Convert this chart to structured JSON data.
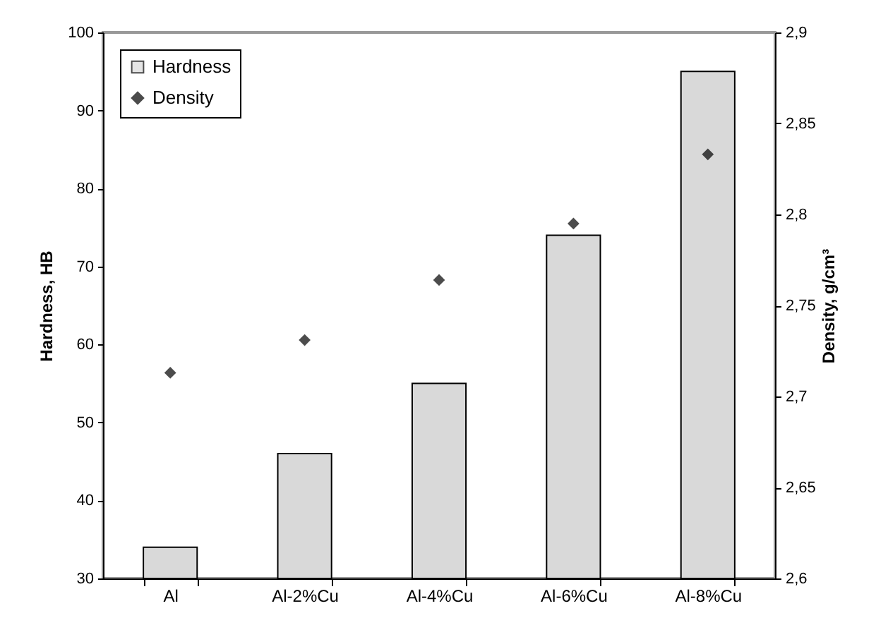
{
  "chart_data": {
    "type": "bar",
    "ylabel": "Hardness, HB",
    "y2label": "Density, g/cm³",
    "categories": [
      "Al",
      "Al-2%Cu",
      "Al-4%Cu",
      "Al-6%Cu",
      "Al-8%Cu"
    ],
    "series": [
      {
        "name": "Hardness",
        "color": "#d9d9d9",
        "values": [
          34,
          46,
          55,
          74,
          95
        ]
      },
      {
        "name": "Density",
        "type": "scatter",
        "axis": "y2",
        "color": "#000000",
        "values": [
          2.713,
          2.731,
          2.764,
          2.795,
          2.833
        ]
      }
    ],
    "ylim": [
      30,
      100
    ],
    "yticks": [
      30,
      40,
      50,
      60,
      70,
      80,
      90,
      100
    ],
    "y2lim": [
      2.6,
      2.9
    ],
    "y2ticks": [
      {
        "value": 2.6,
        "label": "2,6"
      },
      {
        "value": 2.65,
        "label": "2,65"
      },
      {
        "value": 2.7,
        "label": "2,7"
      },
      {
        "value": 2.75,
        "label": "2,75"
      },
      {
        "value": 2.8,
        "label": "2,8"
      },
      {
        "value": 2.85,
        "label": "2,85"
      },
      {
        "value": 2.9,
        "label": "2,9"
      }
    ],
    "marker": "diamond",
    "legend": "top left",
    "grid": false
  }
}
